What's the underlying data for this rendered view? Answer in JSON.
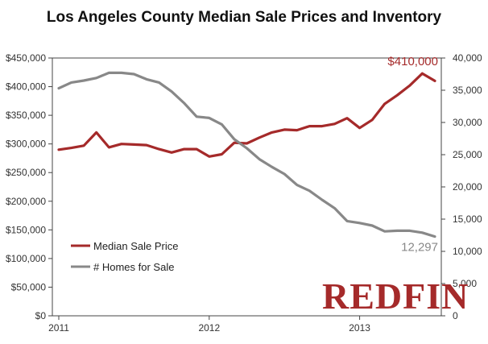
{
  "chart_data": {
    "type": "line",
    "title": "Los Angeles County Median Sale Prices and Inventory",
    "x": [
      0,
      1,
      2,
      3,
      4,
      5,
      6,
      7,
      8,
      9,
      10,
      11,
      12,
      13,
      14,
      15,
      16,
      17,
      18,
      19,
      20,
      21,
      22,
      23,
      24,
      25,
      26,
      27,
      28,
      29,
      30
    ],
    "x_tick_labels": [
      {
        "x": 0,
        "label": "2011"
      },
      {
        "x": 12,
        "label": "2012"
      },
      {
        "x": 24,
        "label": "2013"
      }
    ],
    "y_left": {
      "ylim": [
        0,
        450000
      ],
      "ticks": [
        0,
        50000,
        100000,
        150000,
        200000,
        250000,
        300000,
        350000,
        400000,
        450000
      ],
      "tick_labels": [
        "$0",
        "$50,000",
        "$100,000",
        "$150,000",
        "$200,000",
        "$250,000",
        "$300,000",
        "$350,000",
        "$400,000",
        "$450,000"
      ]
    },
    "y_right": {
      "ylim": [
        0,
        40000
      ],
      "ticks": [
        0,
        5000,
        10000,
        15000,
        20000,
        25000,
        30000,
        35000,
        40000
      ],
      "tick_labels": [
        "0",
        "5,000",
        "10,000",
        "15,000",
        "20,000",
        "25,000",
        "30,000",
        "35,000",
        "40,000"
      ]
    },
    "series": [
      {
        "name": "Median Sale Price",
        "axis": "left",
        "color": "#a52a2a",
        "values": [
          290000,
          293000,
          297000,
          320000,
          294000,
          300000,
          299000,
          298000,
          291000,
          285000,
          291000,
          291000,
          278000,
          282000,
          302000,
          301000,
          311000,
          320000,
          325000,
          324000,
          331000,
          331000,
          335000,
          345000,
          328000,
          342000,
          370000,
          385000,
          402000,
          423000,
          410000
        ]
      },
      {
        "name": "# Homes for Sale",
        "axis": "right",
        "color": "#888888",
        "values": [
          35300,
          36200,
          36500,
          36900,
          37700,
          37700,
          37500,
          36700,
          36200,
          34800,
          33000,
          30900,
          30700,
          29700,
          27400,
          26000,
          24300,
          23100,
          22000,
          20300,
          19400,
          18000,
          16700,
          14700,
          14400,
          14000,
          13100,
          13200,
          13200,
          12900,
          12297
        ]
      }
    ],
    "annotations": [
      {
        "series": 0,
        "text": "$410,000"
      },
      {
        "series": 1,
        "text": "12,297"
      }
    ],
    "legend": {
      "position": "bottom-left"
    },
    "grid": false
  },
  "logo": {
    "text": "REDFIN",
    "mark": "™",
    "color": "#a52a2a"
  }
}
